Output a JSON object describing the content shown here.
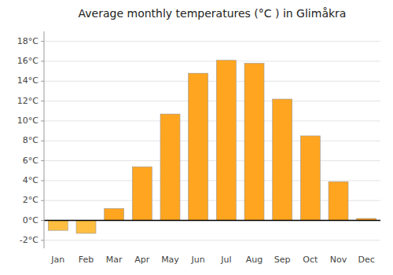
{
  "chart_data": {
    "type": "bar",
    "title": "Average monthly temperatures (°C ) in Glimåkra",
    "categories": [
      "Jan",
      "Feb",
      "Mar",
      "Apr",
      "May",
      "Jun",
      "Jul",
      "Aug",
      "Sep",
      "Oct",
      "Nov",
      "Dec"
    ],
    "values": [
      -1.0,
      -1.3,
      1.2,
      5.4,
      10.7,
      14.8,
      16.1,
      15.8,
      12.2,
      8.5,
      3.9,
      0.2
    ],
    "colors": [
      "#FFBE40",
      "#FFBE40",
      "#FFA520",
      "#FFA520",
      "#FFA520",
      "#FFA520",
      "#FFA520",
      "#FFA520",
      "#FFA520",
      "#FFA520",
      "#FFA520",
      "#FFA520"
    ],
    "ylim": [
      -2.8,
      19.0
    ],
    "yticks": [
      {
        "value": -2,
        "label": "-2°C"
      },
      {
        "value": 0,
        "label": "0°C"
      },
      {
        "value": 2,
        "label": "2°C"
      },
      {
        "value": 4,
        "label": "4°C"
      },
      {
        "value": 6,
        "label": "6°C"
      },
      {
        "value": 8,
        "label": "8°C"
      },
      {
        "value": 10,
        "label": "10°C"
      },
      {
        "value": 12,
        "label": "12°C"
      },
      {
        "value": 14,
        "label": "14°C"
      },
      {
        "value": 16,
        "label": "16°C"
      },
      {
        "value": 18,
        "label": "18°C"
      }
    ],
    "grid": true
  }
}
